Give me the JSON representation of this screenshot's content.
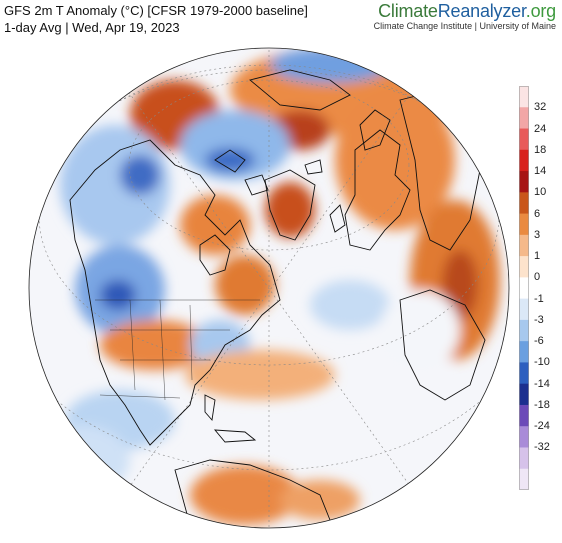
{
  "header": {
    "title": "GFS 2m T Anomaly (°C) [CFSR 1979-2000 baseline]",
    "subtitle": "1-day Avg | Wed, Apr 19, 2023"
  },
  "brand": {
    "name_part1": "Climate",
    "name_part2": "Reanalyzer",
    "name_part3": ".org",
    "affiliation": "Climate Change Institute | University of Maine"
  },
  "legend": {
    "ticks": [
      "32",
      "24",
      "18",
      "14",
      "10",
      "6",
      "3",
      "1",
      "0",
      "-1",
      "-3",
      "-6",
      "-10",
      "-14",
      "-18",
      "-24",
      "-32"
    ],
    "colors": [
      "#fbe4e4",
      "#f2a6a6",
      "#e85a5a",
      "#d8201c",
      "#a71414",
      "#c9561a",
      "#ea8a40",
      "#f5b98a",
      "#fde3cc",
      "#ffffff",
      "#dbe8f7",
      "#a7c8ee",
      "#6a9fe0",
      "#2d5fbf",
      "#1c2f8f",
      "#6c4ab8",
      "#a98bd8",
      "#d6c2ea",
      "#efe6f6"
    ]
  },
  "map": {
    "projection": "orthographic",
    "region": "Northern Hemisphere (North America / Atlantic / Europe)",
    "colors": {
      "ocean_base": "#f4f6fa",
      "warm": "#e8843d",
      "warm_strong": "#b83c14",
      "cool": "#8cb6e8",
      "cool_strong": "#2f5ec0",
      "coast": "#111111"
    }
  }
}
